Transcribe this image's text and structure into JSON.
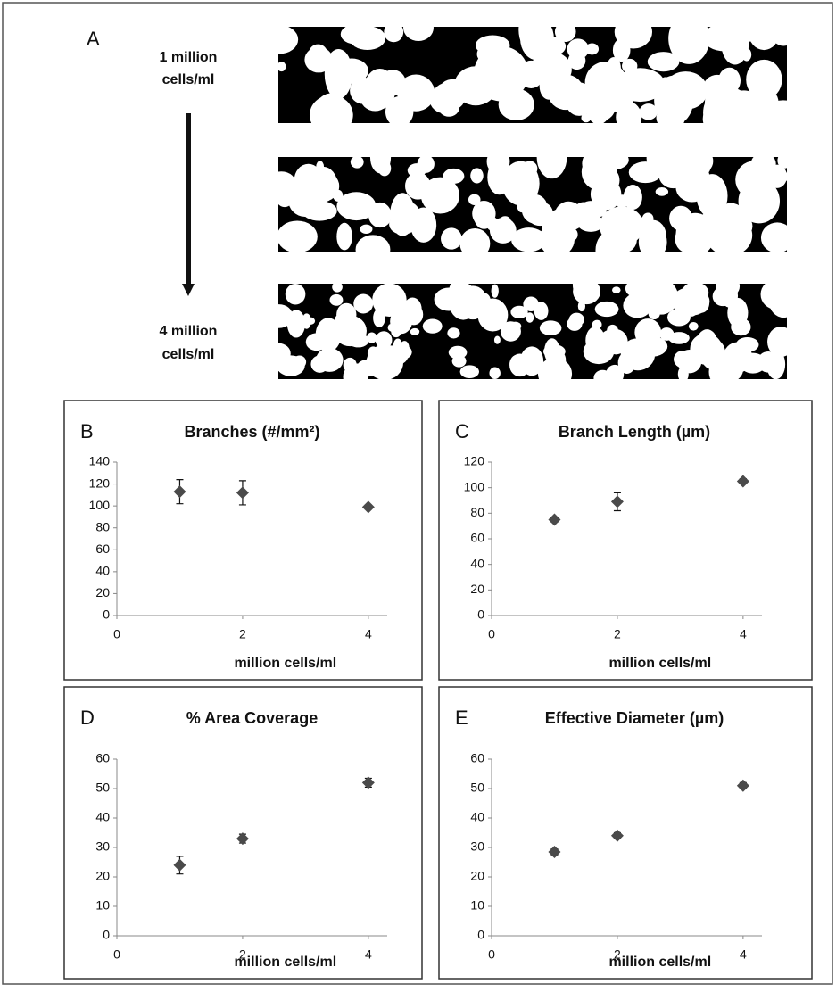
{
  "panel_a": {
    "label": "A",
    "top_label": [
      "1 million",
      "cells/ml"
    ],
    "bottom_label": [
      "4 million",
      "cells/ml"
    ]
  },
  "chart_data": [
    {
      "type": "scatter",
      "panel": "B",
      "title": "Branches (#/mm²)",
      "x_label": "million cells/ml",
      "x": [
        1,
        2,
        4
      ],
      "values": [
        113,
        112,
        99
      ],
      "errors": [
        11,
        11,
        2
      ],
      "color": "#4a4a4a",
      "xlim": [
        0,
        4.3
      ],
      "xticks": [
        0,
        2,
        4
      ],
      "ylim": [
        0,
        140
      ],
      "yticks": [
        0,
        20,
        40,
        60,
        80,
        100,
        120,
        140
      ]
    },
    {
      "type": "scatter",
      "panel": "C",
      "title": "Branch Length (µm)",
      "x_label": "million cells/ml",
      "x": [
        1,
        2,
        4
      ],
      "values": [
        75,
        89,
        105
      ],
      "errors": [
        2,
        7,
        2
      ],
      "color": "#4a4a4a",
      "xlim": [
        0,
        4.3
      ],
      "xticks": [
        0,
        2,
        4
      ],
      "ylim": [
        0,
        120
      ],
      "yticks": [
        0,
        20,
        40,
        60,
        80,
        100,
        120
      ]
    },
    {
      "type": "scatter",
      "panel": "D",
      "title": "% Area Coverage",
      "x_label": "million cells/ml",
      "x": [
        1,
        2,
        4
      ],
      "values": [
        24,
        33,
        52
      ],
      "errors": [
        3,
        1.5,
        1.5
      ],
      "color": "#4a4a4a",
      "xlim": [
        0,
        4.3
      ],
      "xticks": [
        0,
        2,
        4
      ],
      "ylim": [
        0,
        60
      ],
      "yticks": [
        0,
        10,
        20,
        30,
        40,
        50,
        60
      ]
    },
    {
      "type": "scatter",
      "panel": "E",
      "title": "Effective Diameter (µm)",
      "x_label": "million cells/ml",
      "x": [
        1,
        2,
        4
      ],
      "values": [
        28.5,
        34,
        51
      ],
      "errors": [
        1,
        1,
        1
      ],
      "color": "#4a4a4a",
      "xlim": [
        0,
        4.3
      ],
      "xticks": [
        0,
        2,
        4
      ],
      "ylim": [
        0,
        60
      ],
      "yticks": [
        0,
        10,
        20,
        30,
        40,
        50,
        60
      ]
    }
  ]
}
